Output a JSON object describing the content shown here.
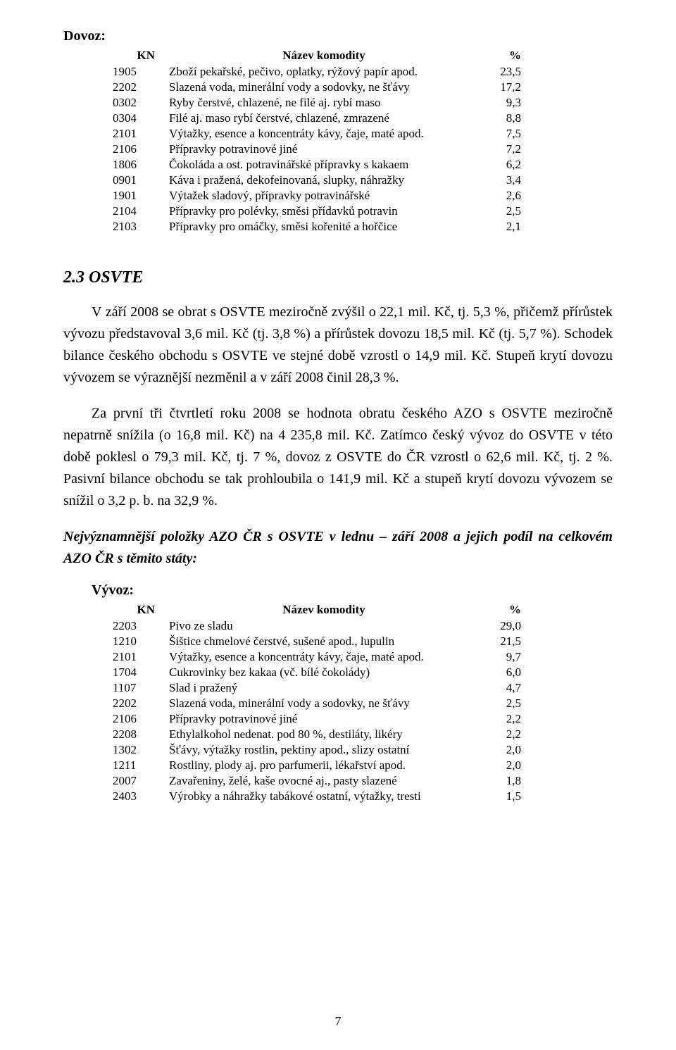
{
  "dovoz": {
    "label": "Dovoz:",
    "headers": {
      "kn": "KN",
      "name": "Název komodity",
      "pct": "%"
    },
    "rows": [
      {
        "kn": "1905",
        "name": "Zboží pekařské, pečivo, oplatky, rýžový papír apod.",
        "pct": "23,5"
      },
      {
        "kn": "2202",
        "name": "Slazená voda, minerální vody a sodovky, ne šťávy",
        "pct": "17,2"
      },
      {
        "kn": "0302",
        "name": "Ryby čerstvé, chlazené, ne filé aj. rybí maso",
        "pct": "9,3"
      },
      {
        "kn": "0304",
        "name": "Filé aj. maso rybí čerstvé, chlazené, zmrazené",
        "pct": "8,8"
      },
      {
        "kn": "2101",
        "name": "Výtažky, esence a koncentráty kávy, čaje, maté apod.",
        "pct": "7,5"
      },
      {
        "kn": "2106",
        "name": "Přípravky potravinové jiné",
        "pct": "7,2"
      },
      {
        "kn": "1806",
        "name": "Čokoláda a ost. potravinářské přípravky s kakaem",
        "pct": "6,2"
      },
      {
        "kn": "0901",
        "name": "Káva i pražená, dekofeinovaná, slupky, náhražky",
        "pct": "3,4"
      },
      {
        "kn": "1901",
        "name": "Výtažek sladový, přípravky potravinářské",
        "pct": "2,6"
      },
      {
        "kn": "2104",
        "name": "Přípravky pro polévky, směsi přídavků potravin",
        "pct": "2,5"
      },
      {
        "kn": "2103",
        "name": "Přípravky pro omáčky, směsi kořenité a hořčice",
        "pct": "2,1"
      }
    ]
  },
  "section": {
    "heading": "2.3   OSVTE",
    "p1": "V září 2008 se obrat s OSVTE meziročně zvýšil o 22,1 mil. Kč, tj. 5,3 %, přičemž přírůstek vývozu představoval 3,6 mil. Kč (tj. 3,8 %) a přírůstek dovozu 18,5 mil. Kč (tj. 5,7 %). Schodek bilance českého obchodu s OSVTE ve stejné době vzrostl o 14,9 mil. Kč. Stupeň krytí dovozu vývozem se výraznější nezměnil a v září 2008 činil 28,3 %.",
    "p2": "Za první tři čtvrtletí roku 2008 se hodnota obratu českého AZO s OSVTE meziročně nepatrně snížila (o 16,8 mil. Kč) na 4 235,8 mil. Kč. Zatímco český vývoz do OSVTE v této době poklesl o 79,3 mil. Kč, tj. 7 %, dovoz z OSVTE do ČR vzrostl o 62,6 mil. Kč, tj. 2 %. Pasivní bilance obchodu se tak prohloubila o 141,9 mil. Kč a stupeň krytí dovozu vývozem se snížil o 3,2 p. b. na 32,9 %.",
    "italic_head": "Nejvýznamnější položky AZO ČR s OSVTE v lednu – září 2008 a jejich podíl na celkovém AZO ČR s těmito státy:"
  },
  "vyvoz": {
    "label": "Vývoz:",
    "headers": {
      "kn": "KN",
      "name": "Název komodity",
      "pct": "%"
    },
    "rows": [
      {
        "kn": "2203",
        "name": "Pivo ze sladu",
        "pct": "29,0"
      },
      {
        "kn": "1210",
        "name": "Šištice chmelové čerstvé, sušené apod., lupulin",
        "pct": "21,5"
      },
      {
        "kn": "2101",
        "name": "Výtažky, esence a koncentráty kávy, čaje, maté apod.",
        "pct": "9,7"
      },
      {
        "kn": "1704",
        "name": "Cukrovinky bez kakaa (vč. bílé čokolády)",
        "pct": "6,0"
      },
      {
        "kn": "1107",
        "name": "Slad i pražený",
        "pct": "4,7"
      },
      {
        "kn": "2202",
        "name": "Slazená voda, minerální vody a sodovky, ne šťávy",
        "pct": "2,5"
      },
      {
        "kn": "2106",
        "name": "Přípravky potravinové jiné",
        "pct": "2,2"
      },
      {
        "kn": "2208",
        "name": "Ethylalkohol nedenat. pod 80 %, destiláty, likéry",
        "pct": "2,2"
      },
      {
        "kn": "1302",
        "name": "Šťávy, výtažky rostlin, pektiny apod., slizy ostatní",
        "pct": "2,0"
      },
      {
        "kn": "1211",
        "name": "Rostliny, plody aj. pro parfumerii, lékařství apod.",
        "pct": "2,0"
      },
      {
        "kn": "2007",
        "name": "Zavařeniny, želé, kaše ovocné aj., pasty slazené",
        "pct": "1,8"
      },
      {
        "kn": "2403",
        "name": "Výrobky a náhražky tabákové ostatní, výtažky, tresti",
        "pct": "1,5"
      }
    ]
  },
  "page_number": "7"
}
